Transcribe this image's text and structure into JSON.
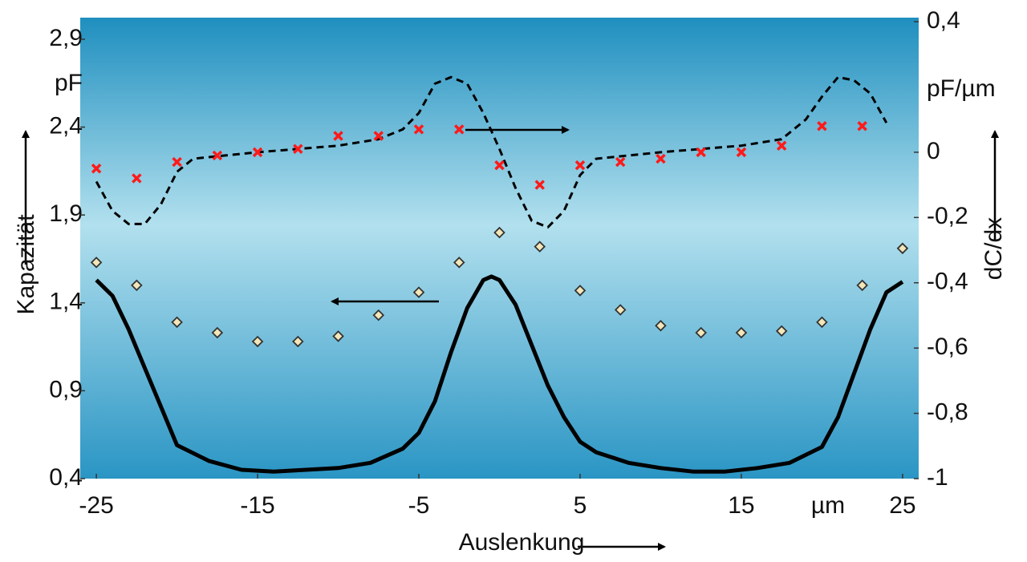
{
  "chart_data": {
    "type": "line",
    "xlabel": "Auslenkung",
    "ylabel": "Kapazität",
    "y2label": "dC/dx",
    "y_unit": "pF",
    "y2_unit": "pF/µm",
    "x_unit": "µm",
    "xlim": [
      -26,
      26
    ],
    "xticks": [
      -25,
      -15,
      -5,
      5,
      15,
      25
    ],
    "ylim": [
      0.4,
      3.0
    ],
    "yticks": [
      {
        "value": 0.4,
        "label": "0,4"
      },
      {
        "value": 0.9,
        "label": "0,9"
      },
      {
        "value": 1.4,
        "label": "1,4"
      },
      {
        "value": 1.9,
        "label": "1,9"
      },
      {
        "value": 2.4,
        "label": "2,4"
      },
      {
        "value": 2.9,
        "label": "2,9"
      }
    ],
    "y2lim": [
      -1,
      0.4
    ],
    "y2ticks": [
      {
        "value": -1,
        "label": "-1"
      },
      {
        "value": -0.8,
        "label": "-0,8"
      },
      {
        "value": -0.6,
        "label": "-0,6"
      },
      {
        "value": -0.4,
        "label": "-0,4"
      },
      {
        "value": -0.2,
        "label": "-0,2"
      },
      0,
      {
        "value": 0.4,
        "label": "0,4"
      }
    ],
    "series": [
      {
        "color": "#000000",
        "axis": "y",
        "line_style": "solid",
        "marker": "none",
        "x": [
          -25,
          -24,
          -23,
          -22,
          -21,
          -20,
          -18,
          -16,
          -14,
          -12,
          -10,
          -8,
          -6,
          -5,
          -4,
          -3,
          -2,
          -1,
          -0.5,
          0,
          1,
          2,
          3,
          4,
          5,
          6,
          8,
          10,
          12,
          14,
          16,
          18,
          20,
          21,
          22,
          23,
          24,
          25
        ],
        "values": [
          1.53,
          1.44,
          1.25,
          1.03,
          0.81,
          0.59,
          0.5,
          0.45,
          0.44,
          0.45,
          0.46,
          0.49,
          0.57,
          0.66,
          0.84,
          1.12,
          1.37,
          1.53,
          1.55,
          1.53,
          1.39,
          1.16,
          0.93,
          0.75,
          0.61,
          0.55,
          0.49,
          0.46,
          0.44,
          0.44,
          0.46,
          0.49,
          0.58,
          0.75,
          1.0,
          1.25,
          1.46,
          1.52
        ]
      },
      {
        "color": "#000000",
        "axis": "y2",
        "line_style": "dashed",
        "marker": "none",
        "x": [
          -25,
          -24,
          -23,
          -22,
          -21,
          -20,
          -19,
          -17,
          -15,
          -12.5,
          -10,
          -7.5,
          -6,
          -5,
          -4,
          -3,
          -2,
          -1,
          0,
          1,
          2,
          3,
          4,
          5,
          6,
          8,
          10,
          12.5,
          15,
          17.5,
          19,
          20,
          21,
          22,
          23,
          24
        ],
        "values": [
          -0.09,
          -0.18,
          -0.22,
          -0.22,
          -0.16,
          -0.06,
          -0.02,
          -0.01,
          0,
          0.01,
          0.02,
          0.04,
          0.07,
          0.12,
          0.21,
          0.23,
          0.21,
          0.12,
          0.01,
          -0.11,
          -0.21,
          -0.23,
          -0.18,
          -0.07,
          -0.02,
          -0.01,
          0,
          0.01,
          0.02,
          0.04,
          0.1,
          0.17,
          0.23,
          0.22,
          0.18,
          0.09
        ]
      },
      {
        "color": "#ff1a1a",
        "axis": "y2",
        "line_style": "none",
        "marker": "x",
        "x": [
          -25,
          -22.5,
          -20,
          -17.5,
          -15,
          -12.5,
          -10,
          -7.5,
          -5,
          -2.5,
          0,
          2.5,
          5,
          7.5,
          10,
          12.5,
          15,
          17.5,
          20,
          22.5
        ],
        "values": [
          -0.05,
          -0.08,
          -0.03,
          -0.01,
          0,
          0.01,
          0.05,
          0.05,
          0.07,
          0.07,
          -0.04,
          -0.1,
          -0.04,
          -0.03,
          -0.02,
          0,
          0,
          0.02,
          0.08,
          0.08
        ]
      },
      {
        "color": "#f3e6b8",
        "axis": "y",
        "line_style": "none",
        "marker": "diamond",
        "x": [
          -25,
          -22.5,
          -20,
          -17.5,
          -15,
          -12.5,
          -10,
          -7.5,
          -5,
          -2.5,
          0,
          2.5,
          5,
          7.5,
          10,
          12.5,
          15,
          17.5,
          20,
          22.5,
          25
        ],
        "values": [
          1.63,
          1.5,
          1.29,
          1.23,
          1.18,
          1.18,
          1.21,
          1.33,
          1.46,
          1.63,
          1.8,
          1.72,
          1.47,
          1.36,
          1.27,
          1.23,
          1.23,
          1.24,
          1.29,
          1.5,
          1.71
        ]
      }
    ]
  }
}
